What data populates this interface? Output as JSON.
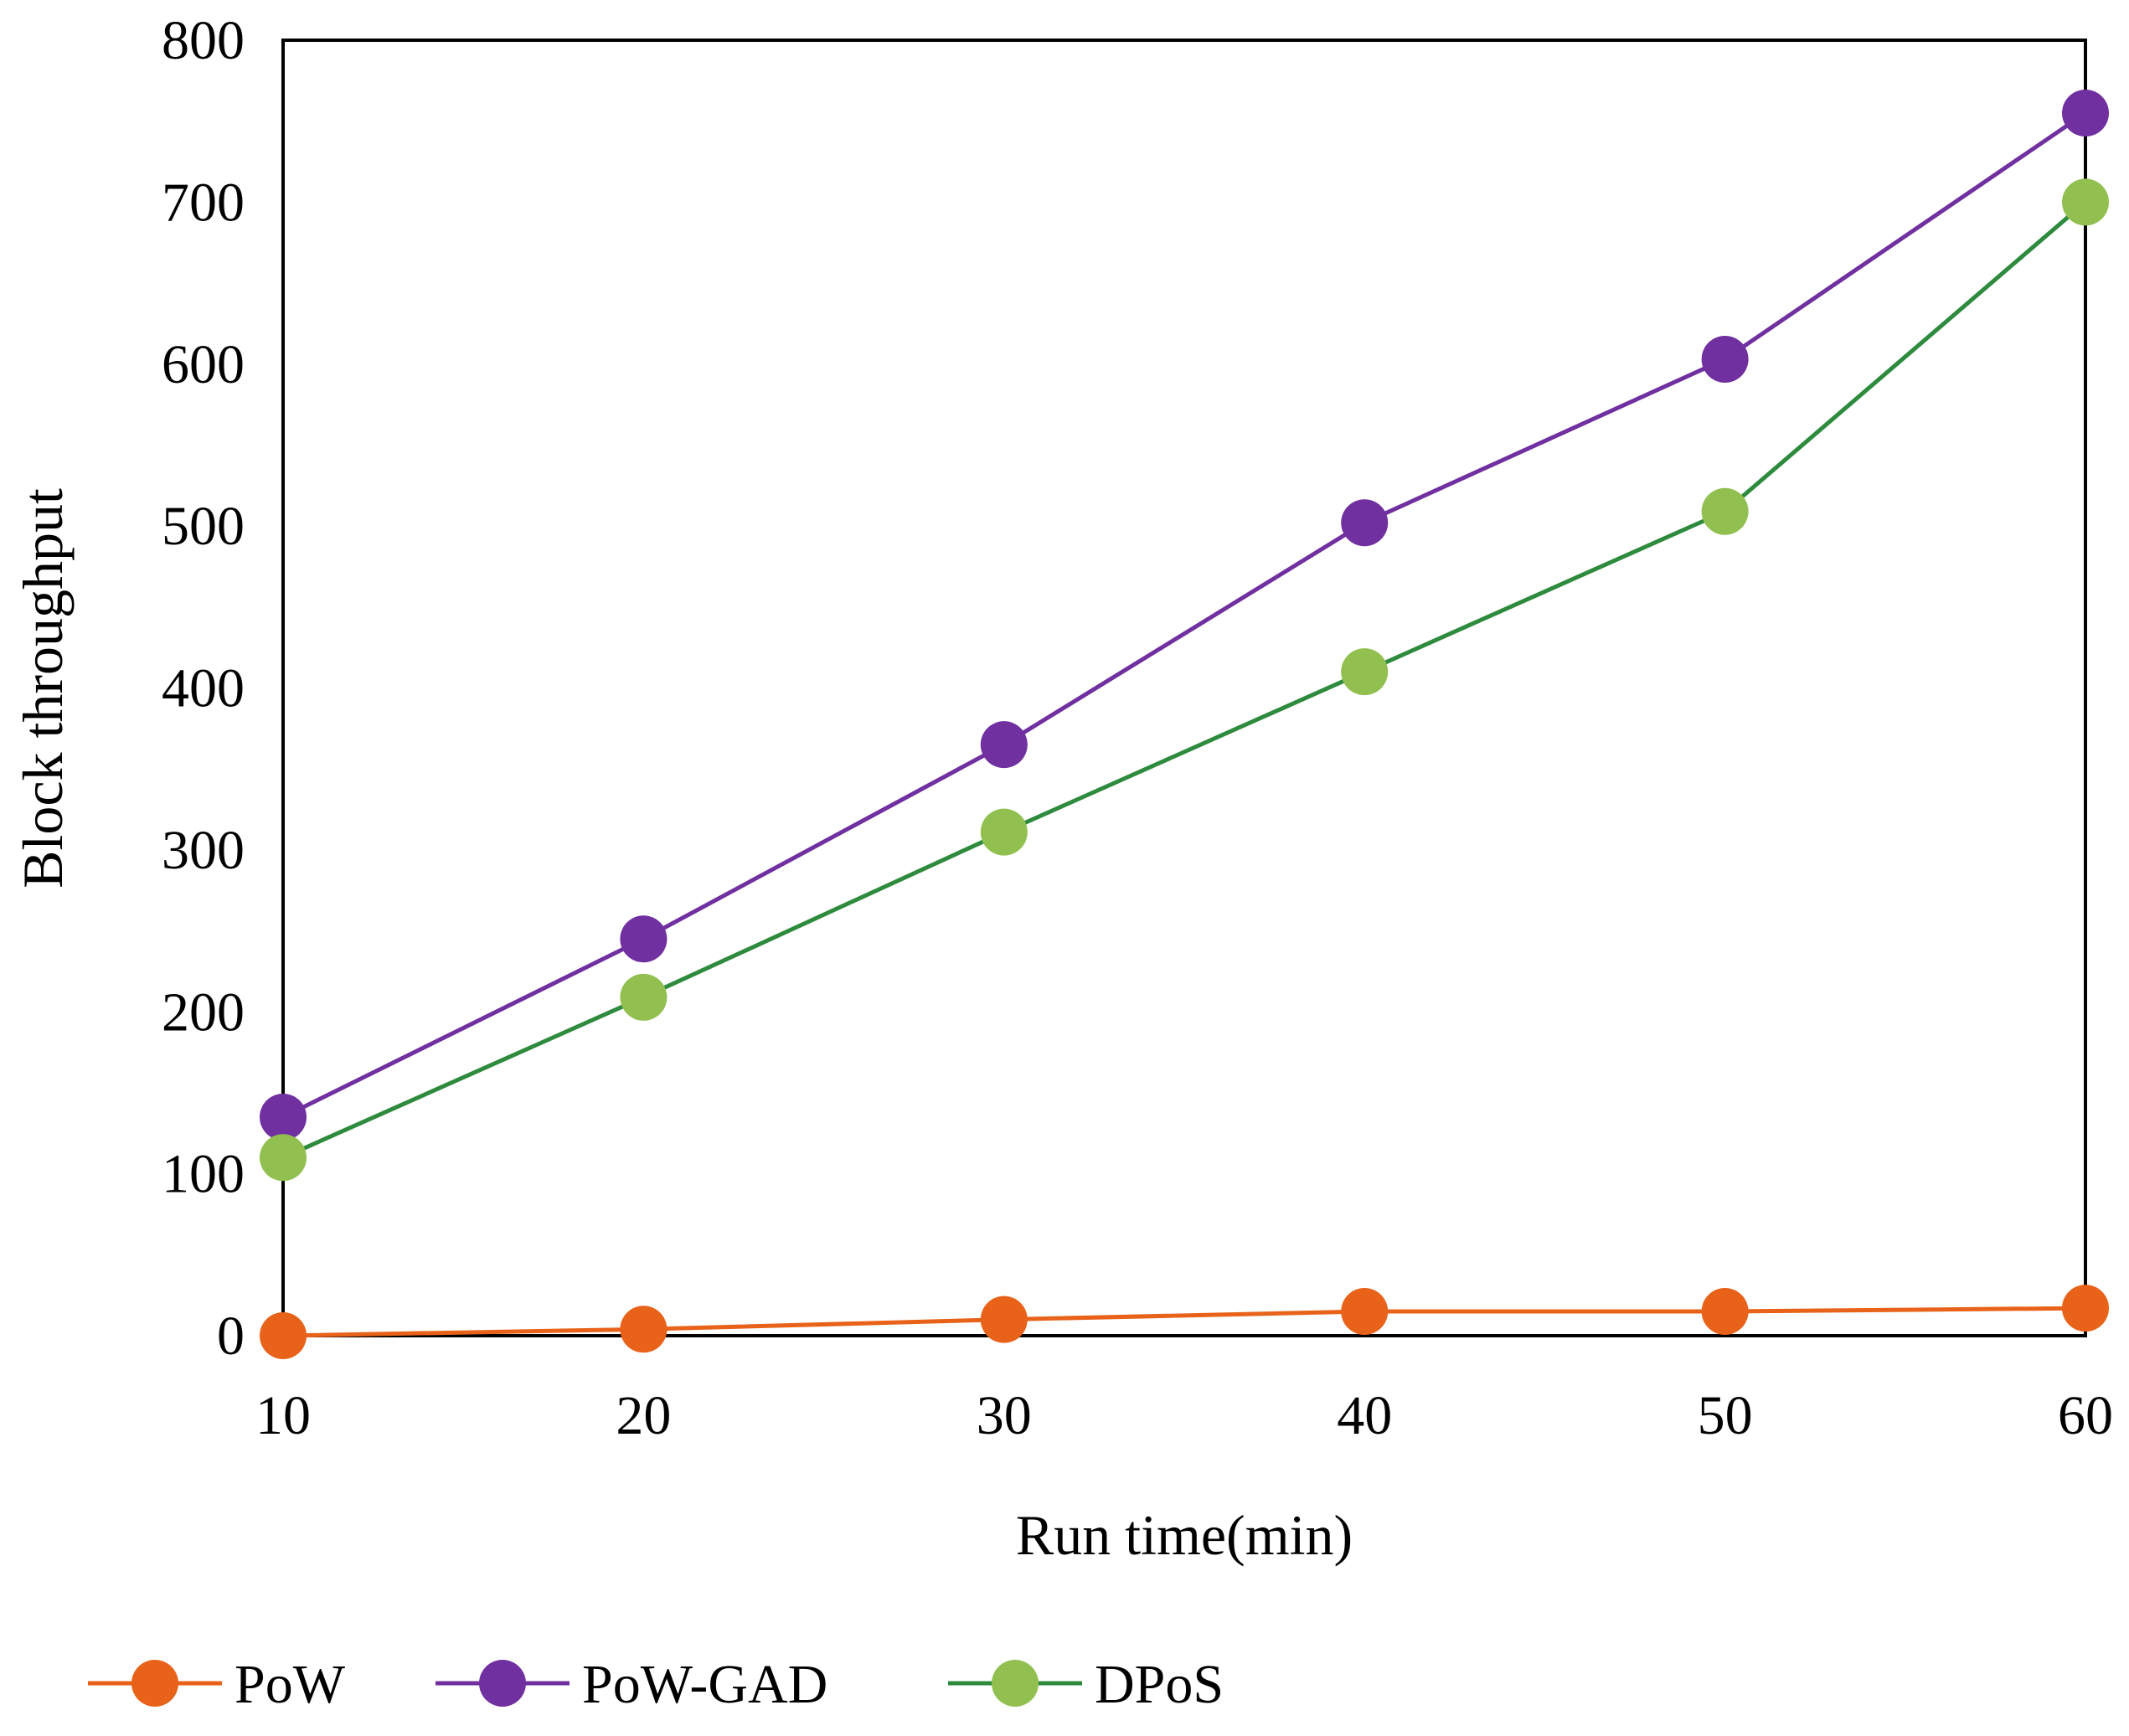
{
  "chart_data": {
    "type": "line",
    "title": "",
    "xlabel": "Run time(min)",
    "ylabel": "Block throughput",
    "x": [
      10,
      20,
      30,
      40,
      50,
      60
    ],
    "xlim": [
      10,
      60
    ],
    "ylim": [
      0,
      800
    ],
    "x_ticks": [
      "10",
      "20",
      "30",
      "40",
      "50",
      "60"
    ],
    "y_ticks": [
      "0",
      "100",
      "200",
      "300",
      "400",
      "500",
      "600",
      "700",
      "800"
    ],
    "grid": false,
    "legend_position": "bottom-left",
    "series": [
      {
        "name": "PoW",
        "color": "#e8621a",
        "values": [
          0,
          4,
          10,
          15,
          15,
          17
        ]
      },
      {
        "name": "PoW-GAD",
        "color": "#7030a0",
        "values": [
          135,
          245,
          365,
          502,
          603,
          755
        ]
      },
      {
        "name": "DPoS",
        "color": "#2e8b3e",
        "marker_color": "#92c050",
        "values": [
          110,
          209,
          311,
          410,
          509,
          700
        ]
      }
    ]
  }
}
